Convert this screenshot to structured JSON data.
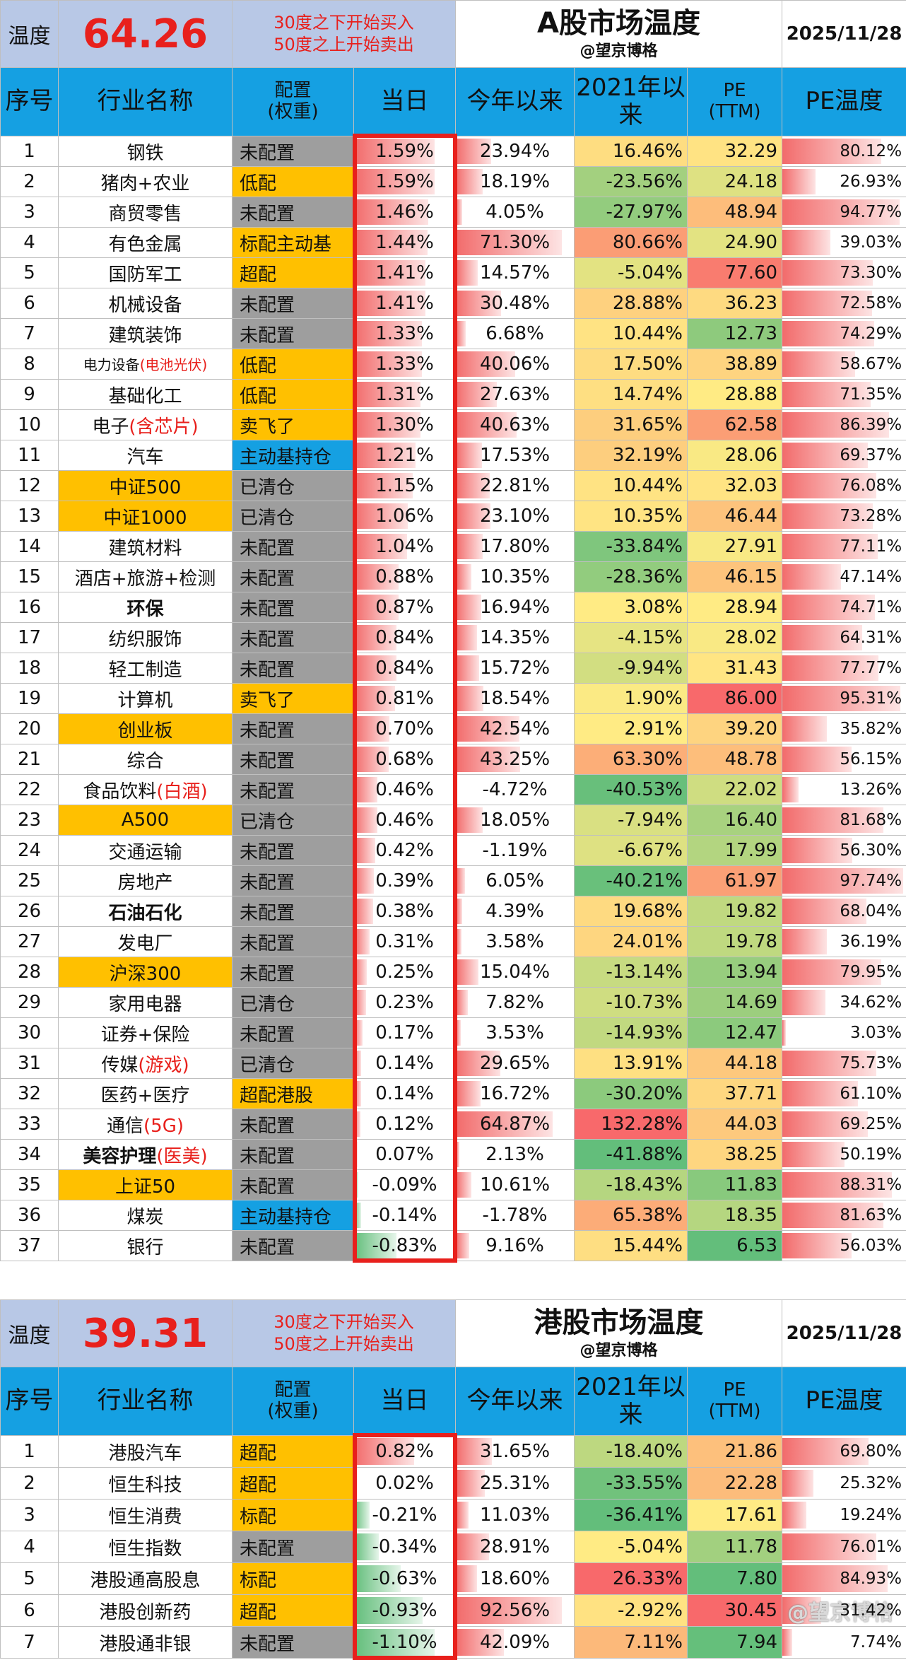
{
  "a_share": {
    "temp_label": "温度",
    "temperature": "64.26",
    "rule_line1": "30度之下开始买入",
    "rule_line2": "50度之上开始卖出",
    "title": "A股市场温度",
    "subtitle": "@望京博格",
    "date": "2025/11/28",
    "headers": {
      "idx": "序号",
      "name": "行业名称",
      "cfg1": "配置",
      "cfg2": "(权重)",
      "day": "当日",
      "ytd": "今年以来",
      "since2021_1": "2021年以",
      "since2021_2": "来",
      "pe1": "PE",
      "pe2": "(TTM)",
      "pe_temp": "PE温度"
    },
    "rows": [
      {
        "idx": "1",
        "name": "钢铁",
        "cfg": "未配置",
        "cfg_color": "gray",
        "day": "1.59%",
        "day_v": 1.59,
        "ytd": "23.94%",
        "ytd_v": 23.94,
        "s2021": "16.46%",
        "s2021_v": 16.46,
        "pe": "32.29",
        "pe_v": 32.29,
        "pet": "80.12%",
        "pet_v": 80.12
      },
      {
        "idx": "2",
        "name": "猪肉+农业",
        "cfg": "低配",
        "cfg_color": "orange",
        "day": "1.59%",
        "day_v": 1.59,
        "ytd": "18.19%",
        "ytd_v": 18.19,
        "s2021": "-23.56%",
        "s2021_v": -23.56,
        "pe": "24.18",
        "pe_v": 24.18,
        "pet": "26.93%",
        "pet_v": 26.93
      },
      {
        "idx": "3",
        "name": "商贸零售",
        "cfg": "未配置",
        "cfg_color": "gray",
        "day": "1.46%",
        "day_v": 1.46,
        "ytd": "4.05%",
        "ytd_v": 4.05,
        "s2021": "-27.97%",
        "s2021_v": -27.97,
        "pe": "48.94",
        "pe_v": 48.94,
        "pet": "94.77%",
        "pet_v": 94.77
      },
      {
        "idx": "4",
        "name": "有色金属",
        "cfg": "标配主动基",
        "cfg_color": "orange",
        "day": "1.44%",
        "day_v": 1.44,
        "ytd": "71.30%",
        "ytd_v": 71.3,
        "s2021": "80.66%",
        "s2021_v": 80.66,
        "pe": "24.90",
        "pe_v": 24.9,
        "pet": "39.03%",
        "pet_v": 39.03
      },
      {
        "idx": "5",
        "name": "国防军工",
        "cfg": "超配",
        "cfg_color": "orange",
        "day": "1.41%",
        "day_v": 1.41,
        "ytd": "14.57%",
        "ytd_v": 14.57,
        "s2021": "-5.04%",
        "s2021_v": -5.04,
        "pe": "77.60",
        "pe_v": 77.6,
        "pet": "73.30%",
        "pet_v": 73.3
      },
      {
        "idx": "6",
        "name": "机械设备",
        "cfg": "未配置",
        "cfg_color": "gray",
        "day": "1.41%",
        "day_v": 1.41,
        "ytd": "30.48%",
        "ytd_v": 30.48,
        "s2021": "28.88%",
        "s2021_v": 28.88,
        "pe": "36.23",
        "pe_v": 36.23,
        "pet": "72.58%",
        "pet_v": 72.58
      },
      {
        "idx": "7",
        "name": "建筑装饰",
        "cfg": "未配置",
        "cfg_color": "gray",
        "day": "1.33%",
        "day_v": 1.33,
        "ytd": "6.68%",
        "ytd_v": 6.68,
        "s2021": "10.44%",
        "s2021_v": 10.44,
        "pe": "12.73",
        "pe_v": 12.73,
        "pet": "74.29%",
        "pet_v": 74.29
      },
      {
        "idx": "8",
        "name": "电力设备",
        "name_red": "(电池光伏)",
        "small": true,
        "cfg": "低配",
        "cfg_color": "orange",
        "day": "1.33%",
        "day_v": 1.33,
        "ytd": "40.06%",
        "ytd_v": 40.06,
        "s2021": "17.50%",
        "s2021_v": 17.5,
        "pe": "38.89",
        "pe_v": 38.89,
        "pet": "58.67%",
        "pet_v": 58.67
      },
      {
        "idx": "9",
        "name": "基础化工",
        "cfg": "低配",
        "cfg_color": "orange",
        "day": "1.31%",
        "day_v": 1.31,
        "ytd": "27.63%",
        "ytd_v": 27.63,
        "s2021": "14.74%",
        "s2021_v": 14.74,
        "pe": "28.88",
        "pe_v": 28.88,
        "pet": "71.35%",
        "pet_v": 71.35
      },
      {
        "idx": "10",
        "name": "电子",
        "name_red": "(含芯片)",
        "cfg": "卖飞了",
        "cfg_color": "orange",
        "day": "1.30%",
        "day_v": 1.3,
        "ytd": "40.63%",
        "ytd_v": 40.63,
        "s2021": "31.65%",
        "s2021_v": 31.65,
        "pe": "62.58",
        "pe_v": 62.58,
        "pet": "86.39%",
        "pet_v": 86.39
      },
      {
        "idx": "11",
        "name": "汽车",
        "cfg": "主动基持仓",
        "cfg_color": "blue",
        "day": "1.21%",
        "day_v": 1.21,
        "ytd": "17.53%",
        "ytd_v": 17.53,
        "s2021": "32.19%",
        "s2021_v": 32.19,
        "pe": "28.06",
        "pe_v": 28.06,
        "pet": "69.37%",
        "pet_v": 69.37
      },
      {
        "idx": "12",
        "name": "中证500",
        "name_bg": "orange",
        "cfg": "已清仓",
        "cfg_color": "gray",
        "day": "1.15%",
        "day_v": 1.15,
        "ytd": "22.81%",
        "ytd_v": 22.81,
        "s2021": "10.44%",
        "s2021_v": 10.44,
        "pe": "32.03",
        "pe_v": 32.03,
        "pet": "76.08%",
        "pet_v": 76.08
      },
      {
        "idx": "13",
        "name": "中证1000",
        "name_bg": "orange",
        "cfg": "已清仓",
        "cfg_color": "gray",
        "day": "1.06%",
        "day_v": 1.06,
        "ytd": "23.10%",
        "ytd_v": 23.1,
        "s2021": "10.35%",
        "s2021_v": 10.35,
        "pe": "46.44",
        "pe_v": 46.44,
        "pet": "73.28%",
        "pet_v": 73.28
      },
      {
        "idx": "14",
        "name": "建筑材料",
        "cfg": "未配置",
        "cfg_color": "gray",
        "day": "1.04%",
        "day_v": 1.04,
        "ytd": "17.80%",
        "ytd_v": 17.8,
        "s2021": "-33.84%",
        "s2021_v": -33.84,
        "pe": "27.91",
        "pe_v": 27.91,
        "pet": "77.11%",
        "pet_v": 77.11
      },
      {
        "idx": "15",
        "name": "酒店+旅游+检测",
        "cfg": "未配置",
        "cfg_color": "gray",
        "day": "0.88%",
        "day_v": 0.88,
        "ytd": "10.35%",
        "ytd_v": 10.35,
        "s2021": "-28.36%",
        "s2021_v": -28.36,
        "pe": "46.15",
        "pe_v": 46.15,
        "pet": "47.14%",
        "pet_v": 47.14
      },
      {
        "idx": "16",
        "name": "环保",
        "bold": true,
        "cfg": "未配置",
        "cfg_color": "gray",
        "day": "0.87%",
        "day_v": 0.87,
        "ytd": "16.94%",
        "ytd_v": 16.94,
        "s2021": "3.08%",
        "s2021_v": 3.08,
        "pe": "28.94",
        "pe_v": 28.94,
        "pet": "74.71%",
        "pet_v": 74.71
      },
      {
        "idx": "17",
        "name": "纺织服饰",
        "cfg": "未配置",
        "cfg_color": "gray",
        "day": "0.84%",
        "day_v": 0.84,
        "ytd": "14.35%",
        "ytd_v": 14.35,
        "s2021": "-4.15%",
        "s2021_v": -4.15,
        "pe": "28.02",
        "pe_v": 28.02,
        "pet": "64.31%",
        "pet_v": 64.31
      },
      {
        "idx": "18",
        "name": "轻工制造",
        "cfg": "未配置",
        "cfg_color": "gray",
        "day": "0.84%",
        "day_v": 0.84,
        "ytd": "15.72%",
        "ytd_v": 15.72,
        "s2021": "-9.94%",
        "s2021_v": -9.94,
        "pe": "31.43",
        "pe_v": 31.43,
        "pet": "77.77%",
        "pet_v": 77.77
      },
      {
        "idx": "19",
        "name": "计算机",
        "cfg": "卖飞了",
        "cfg_color": "orange",
        "day": "0.81%",
        "day_v": 0.81,
        "ytd": "18.54%",
        "ytd_v": 18.54,
        "s2021": "1.90%",
        "s2021_v": 1.9,
        "pe": "86.00",
        "pe_v": 86.0,
        "pet": "95.31%",
        "pet_v": 95.31
      },
      {
        "idx": "20",
        "name": "创业板",
        "name_bg": "orange",
        "cfg": "未配置",
        "cfg_color": "gray",
        "day": "0.70%",
        "day_v": 0.7,
        "ytd": "42.54%",
        "ytd_v": 42.54,
        "s2021": "2.91%",
        "s2021_v": 2.91,
        "pe": "39.20",
        "pe_v": 39.2,
        "pet": "35.82%",
        "pet_v": 35.82
      },
      {
        "idx": "21",
        "name": "综合",
        "cfg": "未配置",
        "cfg_color": "gray",
        "day": "0.68%",
        "day_v": 0.68,
        "ytd": "43.25%",
        "ytd_v": 43.25,
        "s2021": "63.30%",
        "s2021_v": 63.3,
        "pe": "48.78",
        "pe_v": 48.78,
        "pet": "56.15%",
        "pet_v": 56.15
      },
      {
        "idx": "22",
        "name": "食品饮料",
        "name_red": "(白酒)",
        "cfg": "未配置",
        "cfg_color": "gray",
        "day": "0.46%",
        "day_v": 0.46,
        "ytd": "-4.72%",
        "ytd_v": -4.72,
        "s2021": "-40.53%",
        "s2021_v": -40.53,
        "pe": "22.02",
        "pe_v": 22.02,
        "pet": "13.26%",
        "pet_v": 13.26
      },
      {
        "idx": "23",
        "name": "A500",
        "name_bg": "orange",
        "cfg": "已清仓",
        "cfg_color": "gray",
        "day": "0.46%",
        "day_v": 0.46,
        "ytd": "18.05%",
        "ytd_v": 18.05,
        "s2021": "-7.94%",
        "s2021_v": -7.94,
        "pe": "16.40",
        "pe_v": 16.4,
        "pet": "81.68%",
        "pet_v": 81.68
      },
      {
        "idx": "24",
        "name": "交通运输",
        "cfg": "未配置",
        "cfg_color": "gray",
        "day": "0.42%",
        "day_v": 0.42,
        "ytd": "-1.19%",
        "ytd_v": -1.19,
        "s2021": "-6.67%",
        "s2021_v": -6.67,
        "pe": "17.99",
        "pe_v": 17.99,
        "pet": "56.30%",
        "pet_v": 56.3
      },
      {
        "idx": "25",
        "name": "房地产",
        "cfg": "未配置",
        "cfg_color": "gray",
        "day": "0.39%",
        "day_v": 0.39,
        "ytd": "6.05%",
        "ytd_v": 6.05,
        "s2021": "-40.21%",
        "s2021_v": -40.21,
        "pe": "61.97",
        "pe_v": 61.97,
        "pet": "97.74%",
        "pet_v": 97.74
      },
      {
        "idx": "26",
        "name": "石油石化",
        "bold": true,
        "cfg": "未配置",
        "cfg_color": "gray",
        "day": "0.38%",
        "day_v": 0.38,
        "ytd": "4.39%",
        "ytd_v": 4.39,
        "s2021": "19.68%",
        "s2021_v": 19.68,
        "pe": "19.82",
        "pe_v": 19.82,
        "pet": "68.04%",
        "pet_v": 68.04
      },
      {
        "idx": "27",
        "name": "发电厂",
        "cfg": "未配置",
        "cfg_color": "gray",
        "day": "0.31%",
        "day_v": 0.31,
        "ytd": "3.58%",
        "ytd_v": 3.58,
        "s2021": "24.01%",
        "s2021_v": 24.01,
        "pe": "19.78",
        "pe_v": 19.78,
        "pet": "36.19%",
        "pet_v": 36.19
      },
      {
        "idx": "28",
        "name": "沪深300",
        "name_bg": "orange",
        "cfg": "未配置",
        "cfg_color": "gray",
        "day": "0.25%",
        "day_v": 0.25,
        "ytd": "15.04%",
        "ytd_v": 15.04,
        "s2021": "-13.14%",
        "s2021_v": -13.14,
        "pe": "13.94",
        "pe_v": 13.94,
        "pet": "79.95%",
        "pet_v": 79.95
      },
      {
        "idx": "29",
        "name": "家用电器",
        "cfg": "已清仓",
        "cfg_color": "gray",
        "day": "0.23%",
        "day_v": 0.23,
        "ytd": "7.82%",
        "ytd_v": 7.82,
        "s2021": "-10.73%",
        "s2021_v": -10.73,
        "pe": "14.69",
        "pe_v": 14.69,
        "pet": "34.62%",
        "pet_v": 34.62
      },
      {
        "idx": "30",
        "name": "证券+保险",
        "cfg": "未配置",
        "cfg_color": "gray",
        "day": "0.17%",
        "day_v": 0.17,
        "ytd": "3.53%",
        "ytd_v": 3.53,
        "s2021": "-14.93%",
        "s2021_v": -14.93,
        "pe": "12.47",
        "pe_v": 12.47,
        "pet": "3.03%",
        "pet_v": 3.03
      },
      {
        "idx": "31",
        "name": "传媒",
        "name_red": "(游戏)",
        "cfg": "已清仓",
        "cfg_color": "gray",
        "day": "0.14%",
        "day_v": 0.14,
        "ytd": "29.65%",
        "ytd_v": 29.65,
        "s2021": "13.91%",
        "s2021_v": 13.91,
        "pe": "44.18",
        "pe_v": 44.18,
        "pet": "75.73%",
        "pet_v": 75.73
      },
      {
        "idx": "32",
        "name": "医药+医疗",
        "cfg": "超配港股",
        "cfg_color": "orange",
        "day": "0.14%",
        "day_v": 0.14,
        "ytd": "16.72%",
        "ytd_v": 16.72,
        "s2021": "-30.20%",
        "s2021_v": -30.2,
        "pe": "37.71",
        "pe_v": 37.71,
        "pet": "61.10%",
        "pet_v": 61.1
      },
      {
        "idx": "33",
        "name": "通信",
        "name_red": "(5G)",
        "cfg": "未配置",
        "cfg_color": "gray",
        "day": "0.12%",
        "day_v": 0.12,
        "ytd": "64.87%",
        "ytd_v": 64.87,
        "s2021": "132.28%",
        "s2021_v": 132.28,
        "pe": "44.03",
        "pe_v": 44.03,
        "pet": "69.25%",
        "pet_v": 69.25
      },
      {
        "idx": "34",
        "name": "美容护理",
        "name_red": "(医美)",
        "bold": true,
        "cfg": "未配置",
        "cfg_color": "gray",
        "day": "0.07%",
        "day_v": 0.07,
        "ytd": "2.13%",
        "ytd_v": 2.13,
        "s2021": "-41.88%",
        "s2021_v": -41.88,
        "pe": "38.25",
        "pe_v": 38.25,
        "pet": "50.19%",
        "pet_v": 50.19
      },
      {
        "idx": "35",
        "name": "上证50",
        "name_bg": "orange",
        "cfg": "未配置",
        "cfg_color": "gray",
        "day": "-0.09%",
        "day_v": -0.09,
        "ytd": "10.61%",
        "ytd_v": 10.61,
        "s2021": "-18.43%",
        "s2021_v": -18.43,
        "pe": "11.83",
        "pe_v": 11.83,
        "pet": "88.31%",
        "pet_v": 88.31
      },
      {
        "idx": "36",
        "name": "煤炭",
        "cfg": "主动基持仓",
        "cfg_color": "blue",
        "day": "-0.14%",
        "day_v": -0.14,
        "ytd": "-1.78%",
        "ytd_v": -1.78,
        "s2021": "65.38%",
        "s2021_v": 65.38,
        "pe": "18.35",
        "pe_v": 18.35,
        "pet": "81.63%",
        "pet_v": 81.63
      },
      {
        "idx": "37",
        "name": "银行",
        "cfg": "未配置",
        "cfg_color": "gray",
        "day": "-0.83%",
        "day_v": -0.83,
        "ytd": "9.16%",
        "ytd_v": 9.16,
        "s2021": "15.44%",
        "s2021_v": 15.44,
        "pe": "6.53",
        "pe_v": 6.53,
        "pet": "56.03%",
        "pet_v": 56.03
      }
    ]
  },
  "hk_share": {
    "temp_label": "温度",
    "temperature": "39.31",
    "rule_line1": "30度之下开始买入",
    "rule_line2": "50度之上开始卖出",
    "title": "港股市场温度",
    "subtitle": "@望京博格",
    "date": "2025/11/28",
    "headers": {
      "idx": "序号",
      "name": "行业名称",
      "cfg1": "配置",
      "cfg2": "(权重)",
      "day": "当日",
      "ytd": "今年以来",
      "since2021_1": "2021年以",
      "since2021_2": "来",
      "pe1": "PE",
      "pe2": "(TTM)",
      "pe_temp": "PE温度"
    },
    "rows": [
      {
        "idx": "1",
        "name": "港股汽车",
        "cfg": "超配",
        "cfg_color": "orange",
        "day": "0.82%",
        "day_v": 0.82,
        "ytd": "31.65%",
        "ytd_v": 31.65,
        "s2021": "-18.40%",
        "s2021_v": -18.4,
        "pe": "21.86",
        "pe_v": 21.86,
        "pet": "69.80%",
        "pet_v": 69.8
      },
      {
        "idx": "2",
        "name": "恒生科技",
        "cfg": "超配",
        "cfg_color": "orange",
        "day": "0.02%",
        "day_v": 0.02,
        "ytd": "25.31%",
        "ytd_v": 25.31,
        "s2021": "-33.55%",
        "s2021_v": -33.55,
        "pe": "22.28",
        "pe_v": 22.28,
        "pet": "25.32%",
        "pet_v": 25.32
      },
      {
        "idx": "3",
        "name": "恒生消费",
        "cfg": "标配",
        "cfg_color": "orange",
        "day": "-0.21%",
        "day_v": -0.21,
        "ytd": "11.03%",
        "ytd_v": 11.03,
        "s2021": "-36.41%",
        "s2021_v": -36.41,
        "pe": "17.61",
        "pe_v": 17.61,
        "pet": "19.24%",
        "pet_v": 19.24
      },
      {
        "idx": "4",
        "name": "恒生指数",
        "cfg": "未配置",
        "cfg_color": "gray",
        "day": "-0.34%",
        "day_v": -0.34,
        "ytd": "28.91%",
        "ytd_v": 28.91,
        "s2021": "-5.04%",
        "s2021_v": -5.04,
        "pe": "11.78",
        "pe_v": 11.78,
        "pet": "76.01%",
        "pet_v": 76.01
      },
      {
        "idx": "5",
        "name": "港股通高股息",
        "cfg": "标配",
        "cfg_color": "orange",
        "day": "-0.63%",
        "day_v": -0.63,
        "ytd": "18.60%",
        "ytd_v": 18.6,
        "s2021": "26.33%",
        "s2021_v": 26.33,
        "pe": "7.80",
        "pe_v": 7.8,
        "pet": "84.93%",
        "pet_v": 84.93
      },
      {
        "idx": "6",
        "name": "港股创新药",
        "cfg": "超配",
        "cfg_color": "orange",
        "day": "-0.93%",
        "day_v": -0.93,
        "ytd": "92.56%",
        "ytd_v": 92.56,
        "s2021": "-2.92%",
        "s2021_v": -2.92,
        "pe": "30.45",
        "pe_v": 30.45,
        "pet": "31.42%",
        "pet_v": 31.42
      },
      {
        "idx": "7",
        "name": "港股通非银",
        "cfg": "未配置",
        "cfg_color": "gray",
        "day": "-1.10%",
        "day_v": -1.1,
        "ytd": "42.09%",
        "ytd_v": 42.09,
        "s2021": "7.11%",
        "s2021_v": 7.11,
        "pe": "7.94",
        "pe_v": 7.94,
        "pet": "7.74%",
        "pet_v": 7.74
      }
    ]
  },
  "watermark": "@望京博格",
  "colors": {
    "header_blue": "#15a0e2",
    "temp_bg": "#b8c8e6",
    "accent_red": "#e8201c",
    "config_gray": "#9e9e9e",
    "config_orange": "#ffc000",
    "bar_red": "#f26b6b",
    "bar_green": "#63be7b"
  }
}
